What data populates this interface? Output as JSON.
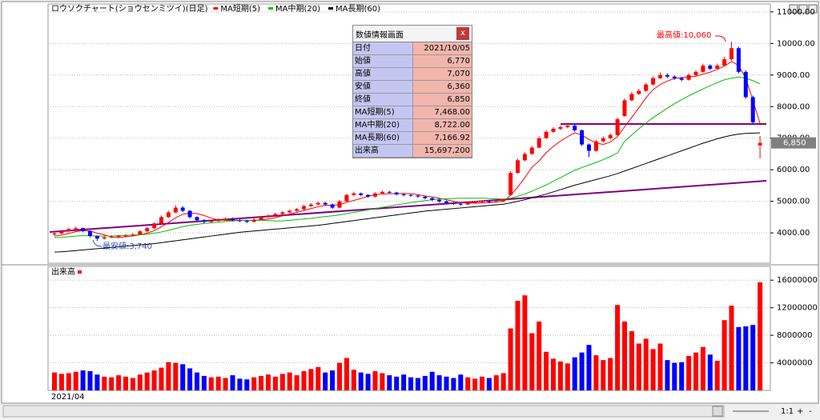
{
  "chart_data": [
    {
      "type": "candlestick",
      "title": "ロウソクチャート(ショウセンミツイ)(日足)",
      "x_start_label": "2021/04",
      "colors": {
        "up": "#ff0000",
        "down": "#0000ff"
      },
      "ylim": [
        3040,
        11250
      ],
      "yticks": [
        {
          "value": 4000,
          "label": "4000.00"
        },
        {
          "value": 5000,
          "label": "5000.00"
        },
        {
          "value": 6000,
          "label": "6000.00"
        },
        {
          "value": 7000,
          "label": "7000.00"
        },
        {
          "value": 8000,
          "label": "8000.00"
        },
        {
          "value": 9000,
          "label": "9000.00"
        },
        {
          "value": 10000,
          "label": "10000.00"
        },
        {
          "value": 11000,
          "label": "11000.00"
        }
      ],
      "grid": true,
      "annotations": [
        {
          "text": "最高値:10,060",
          "color": "#ff0000"
        },
        {
          "text": "最安値:3,740",
          "color": "#3050c0"
        },
        {
          "text": "6,850",
          "color": "#808080"
        }
      ],
      "ohlc": [
        [
          3950,
          4020,
          3900,
          3980
        ],
        [
          3980,
          4090,
          3960,
          4050
        ],
        [
          4050,
          4160,
          4020,
          4120
        ],
        [
          4120,
          4200,
          4080,
          4150
        ],
        [
          4150,
          4170,
          4020,
          4060
        ],
        [
          4060,
          4080,
          3860,
          3900
        ],
        [
          3900,
          3920,
          3740,
          3820
        ],
        [
          3820,
          3900,
          3790,
          3860
        ],
        [
          3860,
          3920,
          3830,
          3880
        ],
        [
          3880,
          3940,
          3850,
          3900
        ],
        [
          3900,
          3960,
          3870,
          3920
        ],
        [
          3920,
          3990,
          3890,
          3950
        ],
        [
          3950,
          4090,
          3930,
          4050
        ],
        [
          4050,
          4190,
          4020,
          4150
        ],
        [
          4150,
          4340,
          4120,
          4300
        ],
        [
          4300,
          4550,
          4270,
          4500
        ],
        [
          4500,
          4700,
          4470,
          4650
        ],
        [
          4650,
          4880,
          4620,
          4800
        ],
        [
          4800,
          4850,
          4660,
          4700
        ],
        [
          4700,
          4720,
          4460,
          4500
        ],
        [
          4500,
          4530,
          4360,
          4400
        ],
        [
          4400,
          4440,
          4300,
          4350
        ],
        [
          4350,
          4420,
          4320,
          4380
        ],
        [
          4380,
          4460,
          4350,
          4420
        ],
        [
          4420,
          4490,
          4390,
          4450
        ],
        [
          4450,
          4480,
          4360,
          4400
        ],
        [
          4400,
          4430,
          4340,
          4380
        ],
        [
          4380,
          4410,
          4310,
          4350
        ],
        [
          4350,
          4460,
          4330,
          4420
        ],
        [
          4420,
          4540,
          4400,
          4500
        ],
        [
          4500,
          4590,
          4470,
          4550
        ],
        [
          4550,
          4640,
          4520,
          4600
        ],
        [
          4600,
          4690,
          4570,
          4650
        ],
        [
          4650,
          4740,
          4620,
          4700
        ],
        [
          4700,
          4790,
          4670,
          4750
        ],
        [
          4750,
          4890,
          4720,
          4850
        ],
        [
          4850,
          4940,
          4820,
          4900
        ],
        [
          4900,
          4990,
          4870,
          4950
        ],
        [
          4950,
          4980,
          4860,
          4900
        ],
        [
          4900,
          4930,
          4760,
          4800
        ],
        [
          4800,
          5040,
          4780,
          5000
        ],
        [
          5000,
          5240,
          4980,
          5200
        ],
        [
          5200,
          5300,
          5170,
          5250
        ],
        [
          5250,
          5280,
          5160,
          5200
        ],
        [
          5200,
          5230,
          5110,
          5150
        ],
        [
          5150,
          5290,
          5120,
          5250
        ],
        [
          5250,
          5340,
          5220,
          5300
        ],
        [
          5300,
          5330,
          5240,
          5280
        ],
        [
          5280,
          5300,
          5180,
          5220
        ],
        [
          5220,
          5250,
          5160,
          5200
        ],
        [
          5200,
          5230,
          5140,
          5180
        ],
        [
          5180,
          5210,
          5110,
          5150
        ],
        [
          5150,
          5180,
          5060,
          5100
        ],
        [
          5100,
          5130,
          5010,
          5050
        ],
        [
          5050,
          5080,
          4960,
          5000
        ],
        [
          5000,
          5030,
          4910,
          4950
        ],
        [
          4950,
          4980,
          4880,
          4920
        ],
        [
          4920,
          4950,
          4860,
          4900
        ],
        [
          4900,
          4990,
          4880,
          4950
        ],
        [
          4950,
          5020,
          4930,
          4980
        ],
        [
          4980,
          5040,
          4960,
          5000
        ],
        [
          5000,
          5030,
          4940,
          4980
        ],
        [
          4980,
          5040,
          4960,
          5000
        ],
        [
          5000,
          5090,
          4980,
          5050
        ],
        [
          5200,
          5950,
          5180,
          5900
        ],
        [
          5900,
          6350,
          5880,
          6300
        ],
        [
          6300,
          6560,
          6270,
          6500
        ],
        [
          6500,
          6760,
          6470,
          6700
        ],
        [
          6700,
          7060,
          6680,
          7000
        ],
        [
          7000,
          7260,
          6980,
          7200
        ],
        [
          7200,
          7350,
          7170,
          7300
        ],
        [
          7300,
          7400,
          7250,
          7350
        ],
        [
          7350,
          7460,
          7310,
          7400
        ],
        [
          7400,
          7430,
          7200,
          7250
        ],
        [
          7250,
          7280,
          6750,
          6800
        ],
        [
          6800,
          6830,
          6400,
          6600
        ],
        [
          6600,
          6950,
          6570,
          6900
        ],
        [
          6900,
          7060,
          6860,
          7000
        ],
        [
          7000,
          7150,
          6960,
          7100
        ],
        [
          7100,
          7660,
          7080,
          7600
        ],
        [
          7700,
          8260,
          7680,
          8200
        ],
        [
          8200,
          8460,
          8170,
          8400
        ],
        [
          8400,
          8560,
          8370,
          8500
        ],
        [
          8500,
          8760,
          8470,
          8700
        ],
        [
          8700,
          8960,
          8670,
          8900
        ],
        [
          8900,
          9080,
          8870,
          9000
        ],
        [
          9000,
          9050,
          8900,
          8950
        ],
        [
          8950,
          8990,
          8850,
          8900
        ],
        [
          8900,
          8940,
          8800,
          8850
        ],
        [
          8850,
          9060,
          8820,
          9000
        ],
        [
          9000,
          9160,
          8970,
          9100
        ],
        [
          9100,
          9360,
          9070,
          9300
        ],
        [
          9300,
          9340,
          9150,
          9200
        ],
        [
          9200,
          9360,
          9170,
          9300
        ],
        [
          9300,
          9580,
          9270,
          9500
        ],
        [
          9500,
          10060,
          9460,
          9850
        ],
        [
          9850,
          9900,
          9050,
          9100
        ],
        [
          9100,
          9150,
          8250,
          8300
        ],
        [
          8300,
          8350,
          7450,
          7500
        ],
        [
          6770,
          7070,
          6360,
          6850
        ]
      ],
      "series": [
        {
          "name": "MA短期(5)",
          "color": "#ff0000",
          "values": [
            3900,
            3930,
            3980,
            4040,
            4070,
            4060,
            3990,
            3940,
            3870,
            3850,
            3880,
            3900,
            3940,
            3990,
            4070,
            4190,
            4330,
            4480,
            4590,
            4630,
            4610,
            4550,
            4470,
            4410,
            4400,
            4400,
            4400,
            4400,
            4400,
            4410,
            4440,
            4480,
            4540,
            4600,
            4650,
            4710,
            4770,
            4830,
            4870,
            4880,
            4890,
            4970,
            5030,
            5090,
            5160,
            5210,
            5230,
            5240,
            5240,
            5250,
            5240,
            5210,
            5170,
            5140,
            5100,
            5050,
            5000,
            4960,
            4940,
            4940,
            4950,
            4960,
            4980,
            5000,
            5190,
            5450,
            5750,
            6080,
            6280,
            6540,
            6740,
            6910,
            7050,
            7170,
            7100,
            6960,
            6850,
            6800,
            6880,
            7050,
            7360,
            7660,
            7960,
            8280,
            8540,
            8700,
            8810,
            8890,
            8920,
            8940,
            8960,
            9030,
            9090,
            9180,
            9280,
            9430,
            9300,
            8900,
            8200,
            7468
          ]
        },
        {
          "name": "MA中期(20)",
          "color": "#00c000",
          "values": [
            3850,
            3860,
            3880,
            3900,
            3910,
            3910,
            3900,
            3900,
            3900,
            3910,
            3920,
            3930,
            3940,
            3960,
            3990,
            4030,
            4080,
            4140,
            4200,
            4240,
            4270,
            4300,
            4320,
            4340,
            4360,
            4380,
            4390,
            4400,
            4400,
            4400,
            4390,
            4380,
            4380,
            4400,
            4420,
            4440,
            4460,
            4490,
            4520,
            4540,
            4570,
            4610,
            4650,
            4690,
            4730,
            4770,
            4810,
            4850,
            4890,
            4920,
            4960,
            4990,
            5020,
            5050,
            5070,
            5080,
            5090,
            5100,
            5100,
            5100,
            5100,
            5090,
            5080,
            5070,
            5100,
            5160,
            5230,
            5320,
            5420,
            5520,
            5640,
            5750,
            5870,
            5980,
            6070,
            6150,
            6230,
            6320,
            6420,
            6530,
            6900,
            7100,
            7300,
            7480,
            7650,
            7800,
            7950,
            8090,
            8220,
            8340,
            8450,
            8560,
            8660,
            8760,
            8850,
            8900,
            8940,
            8900,
            8820,
            8722
          ]
        },
        {
          "name": "MA長期(60)",
          "color": "#000000",
          "values": [
            3390,
            3400,
            3420,
            3440,
            3460,
            3480,
            3500,
            3520,
            3540,
            3560,
            3580,
            3600,
            3620,
            3640,
            3660,
            3690,
            3720,
            3750,
            3780,
            3810,
            3840,
            3870,
            3900,
            3930,
            3960,
            3990,
            4020,
            4040,
            4060,
            4080,
            4100,
            4120,
            4140,
            4160,
            4180,
            4200,
            4220,
            4240,
            4270,
            4300,
            4330,
            4360,
            4390,
            4420,
            4450,
            4480,
            4510,
            4540,
            4570,
            4600,
            4630,
            4660,
            4690,
            4710,
            4730,
            4750,
            4770,
            4790,
            4810,
            4830,
            4850,
            4870,
            4890,
            4910,
            4950,
            5000,
            5050,
            5110,
            5170,
            5230,
            5300,
            5370,
            5440,
            5510,
            5570,
            5630,
            5690,
            5750,
            5810,
            5880,
            5960,
            6040,
            6120,
            6200,
            6280,
            6360,
            6440,
            6520,
            6600,
            6680,
            6760,
            6840,
            6910,
            6980,
            7040,
            7090,
            7130,
            7150,
            7160,
            7166.92
          ]
        }
      ]
    },
    {
      "type": "bar",
      "title": "出来高",
      "color": "#ff0000",
      "colors": {
        "up": "#ff0000",
        "down": "#0000ff"
      },
      "ylim": [
        0,
        18000000
      ],
      "yticks": [
        4000000,
        8000000,
        12000000,
        16000000
      ],
      "values": [
        2600000,
        2400000,
        2500000,
        2700000,
        2900000,
        2800000,
        2300000,
        2000000,
        1900000,
        2200000,
        2000000,
        1800000,
        2300000,
        2600000,
        2900000,
        3300000,
        4100000,
        4000000,
        3800000,
        3200000,
        2600000,
        2100000,
        1900000,
        2000000,
        1800000,
        2200000,
        1700000,
        1600000,
        1900000,
        2100000,
        2300000,
        2000000,
        2400000,
        2600000,
        2200000,
        2800000,
        3100000,
        3400000,
        2600000,
        2900000,
        4000000,
        4700000,
        3000000,
        2600000,
        2400000,
        2800000,
        2500000,
        2200000,
        2000000,
        2300000,
        1900000,
        1800000,
        2100000,
        2700000,
        2200000,
        2000000,
        1800000,
        2300000,
        1900000,
        1700000,
        2000000,
        1800000,
        2200000,
        2500000,
        9000000,
        13000000,
        13800000,
        8300000,
        10000000,
        5600000,
        4600000,
        4200000,
        3900000,
        4800000,
        5500000,
        6600000,
        5100000,
        4400000,
        4700000,
        12400000,
        10000000,
        8600000,
        6800000,
        7500000,
        6000000,
        6800000,
        4400000,
        4000000,
        4100000,
        5000000,
        5500000,
        6300000,
        5200000,
        4300000,
        10200000,
        12300000,
        9200000,
        9300000,
        9500000,
        15697200
      ]
    }
  ],
  "info_panel": {
    "title": "数値情報画面",
    "close": "x",
    "rows": [
      [
        "日付",
        "2021/10/05"
      ],
      [
        "始値",
        "6,770"
      ],
      [
        "高値",
        "7,070"
      ],
      [
        "安値",
        "6,360"
      ],
      [
        "終値",
        "6,850"
      ],
      [
        "MA短期(5)",
        "7,468.00"
      ],
      [
        "MA中期(20)",
        "8,722.00"
      ],
      [
        "MA長期(60)",
        "7,166.92"
      ],
      [
        "出来高",
        "15,697,200"
      ]
    ]
  },
  "toolbar": {
    "zoom": "1:1"
  }
}
